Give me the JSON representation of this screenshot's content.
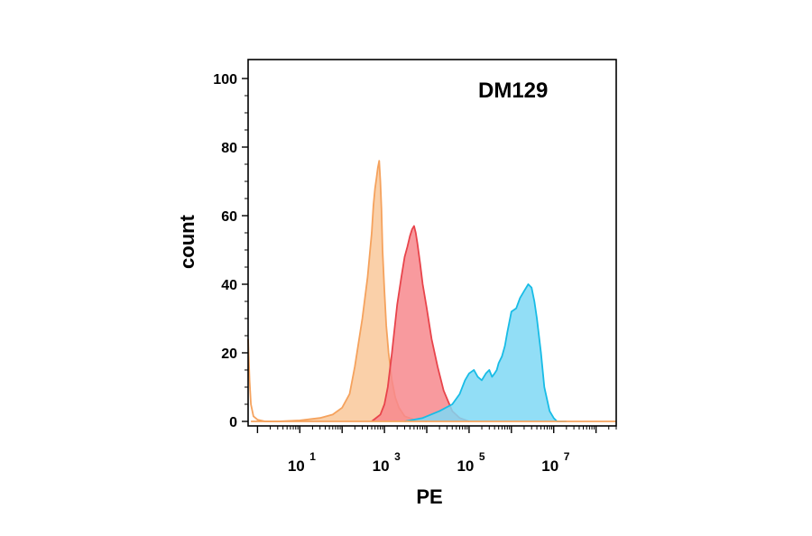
{
  "chart_data": {
    "type": "area",
    "title": "",
    "annotation": "DM129",
    "xlabel": "PE",
    "ylabel": "count",
    "x_scale": "log",
    "xlim": [
      0.6,
      300000000
    ],
    "ylim": [
      0,
      100
    ],
    "yticks": [
      "0",
      "20",
      "40",
      "60",
      "80",
      "100"
    ],
    "xticks": [
      {
        "value": 10,
        "base": "10",
        "exp": "1"
      },
      {
        "value": 1000,
        "base": "10",
        "exp": "3"
      },
      {
        "value": 100000,
        "base": "10",
        "exp": "5"
      },
      {
        "value": 10000000,
        "base": "10",
        "exp": "7"
      }
    ],
    "grid": false,
    "series": [
      {
        "color": "#F5A25D",
        "fill": "#F9C89A",
        "x": [
          0.7,
          1,
          3,
          10,
          30,
          60,
          100,
          150,
          200,
          300,
          400,
          500,
          550,
          600,
          650,
          700,
          750,
          800,
          850,
          900,
          1000,
          1100,
          1250,
          1500,
          1800,
          2200,
          3000,
          5000,
          10000
        ],
        "y": [
          0,
          0,
          0,
          0.3,
          1,
          2,
          4,
          8,
          16,
          30,
          42,
          55,
          63,
          68,
          71,
          74,
          76,
          70,
          62,
          50,
          38,
          28,
          20,
          12,
          7,
          4,
          1.5,
          0.5,
          0
        ]
      },
      {
        "color": "#E8444B",
        "fill": "#F7888D",
        "x": [
          500,
          800,
          1000,
          1200,
          1500,
          2000,
          2500,
          3000,
          3500,
          4000,
          4500,
          5000,
          5500,
          6000,
          7000,
          8000,
          10000,
          13000,
          18000,
          25000,
          40000,
          60000,
          100000
        ],
        "y": [
          0,
          2,
          5,
          10,
          20,
          34,
          42,
          48,
          51,
          54,
          56,
          57,
          55,
          52,
          46,
          40,
          33,
          24,
          16,
          9,
          3,
          1,
          0
        ]
      },
      {
        "color": "#18BCE6",
        "fill": "#7FD8F5",
        "x": [
          3000,
          8000,
          20000,
          40000,
          60000,
          80000,
          100000,
          130000,
          160000,
          200000,
          250000,
          300000,
          350000,
          400000,
          450000,
          500000,
          600000,
          700000,
          800000,
          1000000,
          1300000,
          1600000,
          2000000,
          2500000,
          3000000,
          3500000,
          4000000,
          5000000,
          6000000,
          8000000,
          10000000,
          12000000,
          20000000
        ],
        "y": [
          0,
          1,
          3,
          5,
          8,
          12,
          14,
          15,
          13,
          12,
          14,
          15,
          13,
          14,
          15,
          17,
          19,
          22,
          26,
          32,
          33,
          36,
          38,
          40,
          39,
          35,
          30,
          20,
          10,
          3,
          1,
          0,
          0
        ]
      },
      {
        "color": "#F5A25D",
        "fill": "none",
        "x": [
          0.6,
          0.65,
          0.7,
          0.8,
          1.0,
          1.5,
          3,
          10,
          50,
          200,
          1000,
          10000,
          100000,
          1000000,
          10000000,
          30000000,
          300000000
        ],
        "y": [
          24,
          12,
          5,
          1.5,
          0.5,
          0,
          0,
          0,
          0,
          0,
          0,
          0,
          0,
          0,
          0,
          0,
          0
        ]
      }
    ]
  }
}
